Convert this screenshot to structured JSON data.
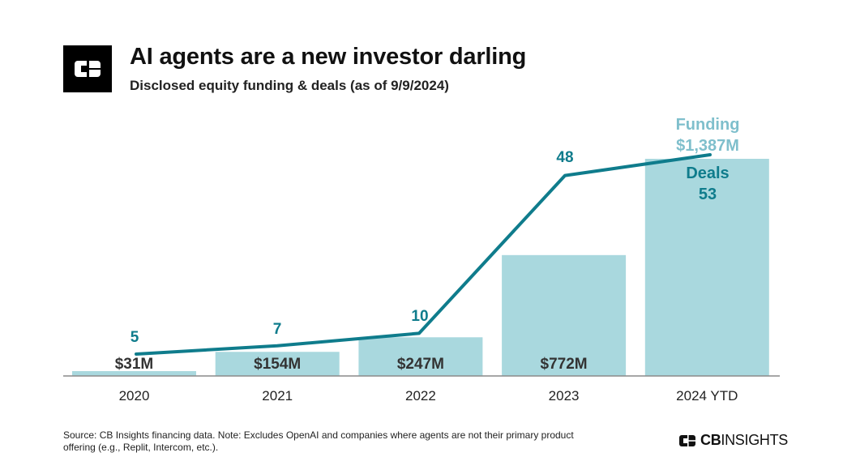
{
  "header": {
    "title": "AI agents are a new investor darling",
    "subtitle": "Disclosed equity funding & deals (as of 9/9/2024)",
    "logo_icon": "cb-insights-logo-icon"
  },
  "footer": {
    "source": "Source: CB Insights financing data. Note: Excludes OpenAI and companies where agents are not their primary product offering (e.g., Replit, Intercom, etc.).",
    "brand_part1": "CB",
    "brand_part2": "INSIGHTS"
  },
  "colors": {
    "bar": "#a9d8de",
    "line": "#0f7c8c",
    "deal_label": "#0f7c8c",
    "funding_label": "#7fbfcc",
    "bar_label": "#333333",
    "axis": "#8a8a8a"
  },
  "chart_data": {
    "type": "bar",
    "categories": [
      "2020",
      "2021",
      "2022",
      "2023",
      "2024 YTD"
    ],
    "series": [
      {
        "name": "Funding",
        "type": "bar",
        "values": [
          31,
          154,
          247,
          772,
          1387
        ],
        "labels": [
          "$31M",
          "$154M",
          "$247M",
          "$772M",
          "$1,387M"
        ],
        "unit": "$M"
      },
      {
        "name": "Deals",
        "type": "line",
        "values": [
          5,
          7,
          10,
          48,
          53
        ],
        "labels": [
          "5",
          "7",
          "10",
          "48",
          "53"
        ]
      }
    ],
    "annotations": {
      "funding_title": "Funding",
      "funding_value": "$1,387M",
      "deals_title": "Deals",
      "deals_value": "53"
    },
    "ylim_funding": [
      0,
      1387
    ],
    "ylim_deals": [
      0,
      60
    ],
    "grid": false,
    "legend": "none"
  }
}
